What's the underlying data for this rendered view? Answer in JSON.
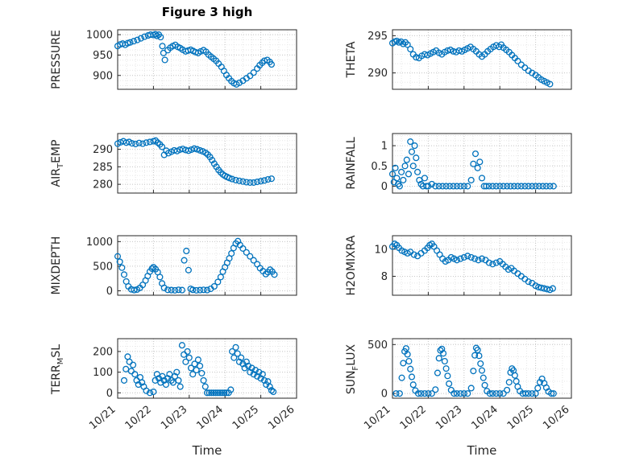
{
  "chart_data": {
    "type": "scatter",
    "title": "Figure 3 high",
    "xlabel": "Time",
    "legend": "none",
    "grid": "on, dotted, with minor grid",
    "style": {
      "marker_color": "#0072BD",
      "major_grid": "#c8c8c8",
      "minor_grid": "#e7e7e7",
      "axis_color": "#262626"
    },
    "x_axis": {
      "lim": [
        0,
        5
      ],
      "ticks": [
        0,
        1,
        2,
        3,
        4,
        5
      ],
      "tick_labels": [
        "10/21",
        "10/22",
        "10/23",
        "10/24",
        "10/25",
        "10/26"
      ],
      "minor_step": 0.25
    },
    "charts": [
      {
        "id": "pressure",
        "ylabel": {
          "pre": "PRESSURE",
          "sub": "",
          "post": ""
        },
        "ylim": [
          866,
          1012
        ],
        "yticks": [
          900,
          950,
          1000
        ],
        "ytick_labels": [
          "900",
          "950",
          "1000"
        ],
        "show_xticks": false,
        "x": [
          0,
          0.07,
          0.14,
          0.21,
          0.28,
          0.35,
          0.45,
          0.55,
          0.65,
          0.75,
          0.85,
          0.92,
          1.0,
          1.05,
          1.1,
          1.15,
          1.2,
          1.25,
          1.28,
          1.32,
          1.4,
          1.47,
          1.54,
          1.61,
          1.68,
          1.75,
          1.82,
          1.9,
          1.97,
          2.04,
          2.11,
          2.18,
          2.25,
          2.32,
          2.4,
          2.47,
          2.54,
          2.61,
          2.68,
          2.75,
          2.82,
          2.9,
          2.97,
          3.04,
          3.11,
          3.18,
          3.25,
          3.32,
          3.4,
          3.5,
          3.6,
          3.7,
          3.8,
          3.9,
          3.97,
          4.04,
          4.1,
          4.18,
          4.25,
          4.3
        ],
        "y": [
          972,
          976,
          978,
          975,
          979,
          981,
          984,
          987,
          991,
          995,
          998,
          1000,
          999,
          1001,
          997,
          1000,
          994,
          972,
          955,
          938,
          962,
          968,
          972,
          975,
          970,
          967,
          963,
          959,
          961,
          963,
          960,
          957,
          955,
          959,
          962,
          958,
          951,
          946,
          941,
          936,
          929,
          921,
          911,
          901,
          893,
          886,
          881,
          878,
          882,
          887,
          893,
          899,
          907,
          917,
          925,
          931,
          936,
          938,
          933,
          927
        ]
      },
      {
        "id": "theta",
        "ylabel": {
          "pre": "THETA",
          "sub": "",
          "post": ""
        },
        "ylim": [
          287.8,
          295.8
        ],
        "yticks": [
          290,
          295
        ],
        "ytick_labels": [
          "290",
          "295"
        ],
        "show_xticks": false,
        "x": [
          0,
          0.06,
          0.12,
          0.18,
          0.24,
          0.3,
          0.36,
          0.42,
          0.5,
          0.58,
          0.66,
          0.74,
          0.82,
          0.9,
          0.98,
          1.06,
          1.14,
          1.22,
          1.3,
          1.38,
          1.46,
          1.54,
          1.62,
          1.7,
          1.78,
          1.86,
          1.94,
          2.02,
          2.1,
          2.18,
          2.26,
          2.34,
          2.42,
          2.5,
          2.58,
          2.66,
          2.74,
          2.82,
          2.9,
          2.98,
          3.04,
          3.1,
          3.18,
          3.26,
          3.34,
          3.42,
          3.5,
          3.6,
          3.7,
          3.8,
          3.9,
          4.0,
          4.08,
          4.16,
          4.24,
          4.32,
          4.4
        ],
        "y": [
          294.0,
          294.2,
          294.3,
          294.1,
          294.2,
          293.9,
          294.1,
          293.8,
          293.2,
          292.5,
          292.1,
          292.0,
          292.3,
          292.5,
          292.4,
          292.6,
          292.8,
          293.0,
          292.7,
          292.5,
          292.8,
          293.0,
          293.1,
          292.9,
          292.8,
          293.0,
          292.9,
          293.1,
          293.3,
          293.5,
          293.2,
          292.9,
          292.5,
          292.2,
          292.5,
          292.9,
          293.2,
          293.5,
          293.7,
          293.5,
          293.8,
          293.4,
          293.1,
          292.8,
          292.4,
          292.0,
          291.6,
          291.1,
          290.7,
          290.3,
          290.0,
          289.7,
          289.4,
          289.1,
          288.9,
          288.7,
          288.5
        ]
      },
      {
        "id": "air-temp",
        "ylabel": {
          "pre": "AIR",
          "sub": "T",
          "post": "EMP"
        },
        "ylim": [
          277.5,
          294.5
        ],
        "yticks": [
          280,
          285,
          290
        ],
        "ytick_labels": [
          "280",
          "285",
          "290"
        ],
        "show_xticks": false,
        "x": [
          0,
          0.08,
          0.16,
          0.24,
          0.32,
          0.4,
          0.5,
          0.6,
          0.7,
          0.8,
          0.9,
          1.0,
          1.06,
          1.12,
          1.18,
          1.24,
          1.3,
          1.36,
          1.42,
          1.5,
          1.58,
          1.66,
          1.74,
          1.82,
          1.9,
          1.98,
          2.06,
          2.14,
          2.22,
          2.3,
          2.38,
          2.46,
          2.52,
          2.58,
          2.64,
          2.7,
          2.76,
          2.82,
          2.88,
          2.94,
          3.0,
          3.06,
          3.12,
          3.2,
          3.3,
          3.4,
          3.5,
          3.6,
          3.7,
          3.8,
          3.9,
          4.0,
          4.1,
          4.2,
          4.3
        ],
        "y": [
          291.6,
          292.0,
          292.3,
          291.9,
          292.1,
          291.7,
          291.5,
          291.8,
          291.6,
          291.9,
          292.1,
          292.3,
          292.5,
          291.9,
          291.4,
          290.7,
          288.4,
          289.6,
          288.9,
          289.3,
          289.7,
          289.5,
          289.9,
          290.1,
          289.8,
          289.6,
          289.9,
          290.2,
          290.0,
          289.7,
          289.4,
          289.0,
          288.5,
          287.8,
          286.9,
          285.9,
          285.0,
          284.1,
          283.4,
          282.8,
          282.4,
          282.1,
          281.8,
          281.5,
          281.2,
          281.0,
          280.8,
          280.6,
          280.5,
          280.5,
          280.7,
          280.9,
          281.1,
          281.4,
          281.6
        ]
      },
      {
        "id": "rainfall",
        "ylabel": {
          "pre": "RAINFALL",
          "sub": "",
          "post": ""
        },
        "ylim": [
          -0.17,
          1.3
        ],
        "yticks": [
          0,
          0.5,
          1
        ],
        "ytick_labels": [
          "0",
          "0.5",
          "1"
        ],
        "show_xticks": false,
        "x": [
          0,
          0.04,
          0.08,
          0.12,
          0.16,
          0.2,
          0.25,
          0.3,
          0.35,
          0.4,
          0.45,
          0.5,
          0.54,
          0.58,
          0.62,
          0.66,
          0.7,
          0.75,
          0.8,
          0.85,
          0.9,
          0.95,
          1.0,
          1.1,
          1.2,
          1.3,
          1.4,
          1.5,
          1.6,
          1.7,
          1.8,
          1.9,
          2.0,
          2.1,
          2.2,
          2.26,
          2.32,
          2.38,
          2.44,
          2.5,
          2.56,
          2.62,
          2.7,
          2.8,
          2.9,
          3.0,
          3.1,
          3.2,
          3.3,
          3.4,
          3.5,
          3.6,
          3.7,
          3.8,
          3.9,
          4.0,
          4.1,
          4.2,
          4.3,
          4.4,
          4.5
        ],
        "y": [
          0.3,
          0.1,
          0.45,
          0.2,
          0.05,
          0,
          0.35,
          0.15,
          0.5,
          0.65,
          0.3,
          1.1,
          0.85,
          0.5,
          1.0,
          0.7,
          0.35,
          0.15,
          0.05,
          0,
          0.2,
          0,
          0,
          0.05,
          0,
          0,
          0,
          0,
          0,
          0,
          0,
          0,
          0,
          0,
          0.15,
          0.55,
          0.8,
          0.45,
          0.6,
          0.2,
          0,
          0,
          0,
          0,
          0,
          0,
          0,
          0,
          0,
          0,
          0,
          0,
          0,
          0,
          0,
          0,
          0,
          0,
          0,
          0,
          0
        ]
      },
      {
        "id": "mixdepth",
        "ylabel": {
          "pre": "MIXDEPTH",
          "sub": "",
          "post": ""
        },
        "ylim": [
          -90,
          1120
        ],
        "yticks": [
          0,
          500,
          1000
        ],
        "ytick_labels": [
          "0",
          "500",
          "1000"
        ],
        "show_xticks": false,
        "x": [
          0,
          0.06,
          0.12,
          0.18,
          0.24,
          0.3,
          0.38,
          0.46,
          0.54,
          0.62,
          0.7,
          0.78,
          0.84,
          0.9,
          0.96,
          1.0,
          1.06,
          1.12,
          1.18,
          1.24,
          1.3,
          1.4,
          1.5,
          1.6,
          1.7,
          1.8,
          1.86,
          1.92,
          1.98,
          2.04,
          2.1,
          2.2,
          2.3,
          2.4,
          2.5,
          2.6,
          2.7,
          2.8,
          2.88,
          2.94,
          3.0,
          3.06,
          3.12,
          3.18,
          3.24,
          3.3,
          3.36,
          3.42,
          3.5,
          3.6,
          3.7,
          3.8,
          3.9,
          3.98,
          4.06,
          4.14,
          4.2,
          4.26,
          4.32,
          4.38
        ],
        "y": [
          700,
          590,
          470,
          330,
          190,
          90,
          30,
          15,
          25,
          60,
          120,
          210,
          300,
          390,
          450,
          480,
          440,
          380,
          280,
          150,
          60,
          20,
          15,
          10,
          20,
          15,
          620,
          810,
          420,
          40,
          20,
          10,
          15,
          20,
          15,
          40,
          90,
          180,
          280,
          390,
          480,
          570,
          660,
          760,
          870,
          960,
          1010,
          930,
          860,
          780,
          700,
          620,
          540,
          460,
          400,
          340,
          380,
          430,
          390,
          330
        ]
      },
      {
        "id": "h2omixra",
        "ylabel": {
          "pre": "H2OMIXRA",
          "sub": "",
          "post": ""
        },
        "ylim": [
          6.6,
          11.0
        ],
        "yticks": [
          8,
          10
        ],
        "ytick_labels": [
          "8",
          "10"
        ],
        "show_xticks": false,
        "x": [
          0,
          0.06,
          0.12,
          0.18,
          0.26,
          0.34,
          0.42,
          0.5,
          0.6,
          0.7,
          0.8,
          0.9,
          0.98,
          1.04,
          1.1,
          1.16,
          1.24,
          1.32,
          1.4,
          1.48,
          1.56,
          1.64,
          1.72,
          1.8,
          1.9,
          2.0,
          2.1,
          2.2,
          2.3,
          2.4,
          2.5,
          2.6,
          2.7,
          2.8,
          2.9,
          3.0,
          3.08,
          3.16,
          3.24,
          3.32,
          3.4,
          3.5,
          3.6,
          3.7,
          3.8,
          3.9,
          4.0,
          4.08,
          4.16,
          4.24,
          4.32,
          4.4,
          4.48
        ],
        "y": [
          10.2,
          10.4,
          10.3,
          10.1,
          9.9,
          9.8,
          9.7,
          9.8,
          9.6,
          9.5,
          9.7,
          9.9,
          10.1,
          10.3,
          10.4,
          10.2,
          9.9,
          9.6,
          9.3,
          9.1,
          9.2,
          9.4,
          9.3,
          9.2,
          9.3,
          9.4,
          9.5,
          9.4,
          9.3,
          9.2,
          9.3,
          9.2,
          9.0,
          8.9,
          9.0,
          9.1,
          8.9,
          8.7,
          8.5,
          8.6,
          8.4,
          8.2,
          8.0,
          7.8,
          7.6,
          7.5,
          7.3,
          7.2,
          7.15,
          7.1,
          7.05,
          7.0,
          7.1
        ]
      },
      {
        "id": "terr-msl",
        "ylabel": {
          "pre": "TERR",
          "sub": "M",
          "post": "SL"
        },
        "ylim": [
          -26,
          262
        ],
        "yticks": [
          0,
          100,
          200
        ],
        "ytick_labels": [
          "0",
          "100",
          "200"
        ],
        "show_xticks": true,
        "x": [
          0.18,
          0.23,
          0.28,
          0.33,
          0.38,
          0.43,
          0.48,
          0.53,
          0.58,
          0.63,
          0.68,
          0.73,
          0.8,
          0.9,
          1.0,
          1.05,
          1.1,
          1.15,
          1.2,
          1.25,
          1.3,
          1.35,
          1.4,
          1.45,
          1.5,
          1.55,
          1.6,
          1.65,
          1.7,
          1.75,
          1.8,
          1.85,
          1.9,
          1.95,
          2.0,
          2.05,
          2.1,
          2.15,
          2.2,
          2.25,
          2.3,
          2.35,
          2.4,
          2.45,
          2.5,
          2.56,
          2.62,
          2.68,
          2.74,
          2.8,
          2.86,
          2.92,
          2.98,
          3.04,
          3.1,
          3.16,
          3.2,
          3.25,
          3.3,
          3.35,
          3.4,
          3.45,
          3.5,
          3.55,
          3.6,
          3.65,
          3.7,
          3.75,
          3.8,
          3.85,
          3.9,
          3.95,
          4.0,
          4.05,
          4.1,
          4.15,
          4.2,
          4.25,
          4.3,
          4.35
        ],
        "y": [
          60,
          115,
          175,
          150,
          105,
          135,
          90,
          60,
          40,
          75,
          50,
          30,
          10,
          0,
          5,
          60,
          90,
          70,
          50,
          80,
          60,
          40,
          70,
          90,
          60,
          50,
          80,
          100,
          60,
          30,
          230,
          185,
          150,
          200,
          170,
          120,
          90,
          140,
          110,
          160,
          130,
          95,
          60,
          30,
          0,
          0,
          0,
          0,
          0,
          0,
          0,
          0,
          0,
          0,
          0,
          15,
          200,
          170,
          220,
          190,
          150,
          170,
          140,
          120,
          150,
          130,
          100,
          120,
          90,
          110,
          80,
          100,
          70,
          90,
          60,
          40,
          55,
          30,
          12,
          5
        ]
      },
      {
        "id": "sun-flux",
        "ylabel": {
          "pre": "SUN",
          "sub": "F",
          "post": "LUX"
        },
        "ylim": [
          -48,
          560
        ],
        "yticks": [
          0,
          500
        ],
        "ytick_labels": [
          "0",
          "500"
        ],
        "show_xticks": true,
        "x": [
          0.1,
          0.2,
          0.26,
          0.3,
          0.34,
          0.38,
          0.42,
          0.46,
          0.5,
          0.54,
          0.58,
          0.64,
          0.72,
          0.8,
          0.9,
          1.0,
          1.1,
          1.2,
          1.26,
          1.3,
          1.34,
          1.38,
          1.42,
          1.46,
          1.5,
          1.54,
          1.58,
          1.64,
          1.72,
          1.8,
          1.9,
          2.0,
          2.1,
          2.2,
          2.26,
          2.3,
          2.34,
          2.38,
          2.42,
          2.46,
          2.5,
          2.54,
          2.58,
          2.64,
          2.72,
          2.8,
          2.9,
          3.0,
          3.1,
          3.2,
          3.26,
          3.3,
          3.34,
          3.38,
          3.42,
          3.46,
          3.5,
          3.56,
          3.64,
          3.72,
          3.8,
          3.9,
          4.0,
          4.06,
          4.12,
          4.18,
          4.24,
          4.3,
          4.36,
          4.44,
          4.5
        ],
        "y": [
          0,
          0,
          160,
          310,
          430,
          460,
          400,
          330,
          250,
          170,
          90,
          30,
          0,
          0,
          0,
          0,
          0,
          40,
          210,
          360,
          440,
          455,
          410,
          330,
          255,
          180,
          100,
          35,
          0,
          0,
          0,
          0,
          0,
          55,
          230,
          390,
          465,
          445,
          385,
          305,
          235,
          160,
          85,
          25,
          0,
          0,
          0,
          0,
          0,
          35,
          115,
          215,
          255,
          235,
          185,
          125,
          70,
          25,
          0,
          0,
          0,
          0,
          0,
          55,
          115,
          150,
          105,
          60,
          20,
          0,
          0
        ]
      }
    ]
  }
}
